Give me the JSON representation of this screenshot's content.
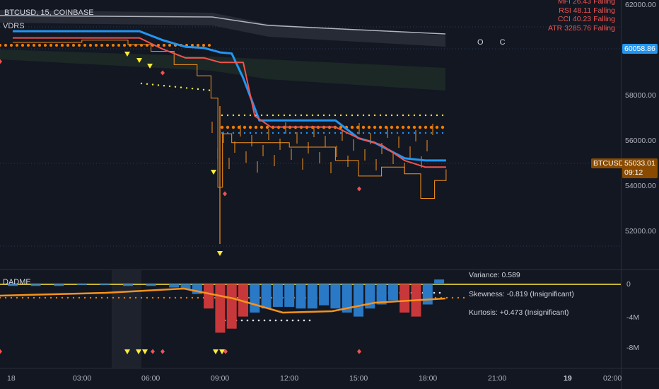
{
  "header": {
    "symbol_line": "BTCUSD, 15, COINBASE",
    "indicator_top": "VDRS",
    "indicator_bottom": "DADME",
    "oc_label": "O C"
  },
  "stats_panel": {
    "lines": [
      "MFI 26.43  Falling",
      "RSI 48.11  Falling",
      "CCI 40.23  Falling",
      "ATR 3285.76  Falling"
    ]
  },
  "price_axis": {
    "ticks": [
      "62000.00",
      "58000.00",
      "56000.00",
      "54000.00",
      "52000.00"
    ],
    "highlight": "60058.86",
    "current_symbol": "BTCUSD",
    "current_price": "55033.01",
    "countdown": "09:12"
  },
  "indicator_axis": {
    "ticks": [
      "0",
      "-4M",
      "-8M"
    ]
  },
  "time_axis": {
    "ticks": [
      "18",
      "03:00",
      "06:00",
      "09:00",
      "12:00",
      "15:00",
      "18:00",
      "21:00",
      "19",
      "02:00"
    ]
  },
  "statistics": {
    "variance": "Variance: 0.589",
    "skewness": "Skewness: -0.819 (Insignificant)",
    "kurtosis": "Kurtosis: +0.473 (Insignificant)"
  },
  "colors": {
    "background": "#131722",
    "blue_line": "#2196f3",
    "red_line": "#ef5350",
    "candles": "#f7931a",
    "dots_orange": "#f57c00",
    "dots_yellow": "#ffeb3b",
    "histogram_blue": "#2979c7",
    "histogram_red": "#c8383a",
    "trend_line": "#f7931a"
  },
  "chart_data": {
    "type": "line",
    "xlabel": "",
    "ylabel": "",
    "ylim": [
      50500,
      62400
    ],
    "x_ticks": [
      "18",
      "03:00",
      "06:00",
      "09:00",
      "12:00",
      "15:00",
      "18:00",
      "21:00",
      "19",
      "02:00"
    ],
    "series": [
      {
        "color": "#2196f3",
        "x_hours": [
          0,
          5.5,
          6.5,
          7.5,
          8.3,
          9.0,
          9.5,
          10.0,
          10.7,
          11.4,
          12.5,
          14.0,
          15.0,
          15.7,
          17.0,
          17.9,
          18.8
        ],
        "values": [
          61000,
          61000,
          60600,
          60300,
          60250,
          60050,
          60000,
          58900,
          57000,
          57000,
          57000,
          57000,
          56200,
          56000,
          55300,
          55200,
          55200
        ]
      },
      {
        "color": "#ef5350",
        "x_hours": [
          0,
          5.5,
          6.5,
          7.5,
          8.3,
          9.0,
          10.0,
          10.5,
          11.2,
          12.5,
          14.0,
          15.0,
          16.0,
          17.0,
          17.9,
          18.8
        ],
        "values": [
          60700,
          60700,
          60200,
          59800,
          59800,
          59600,
          59600,
          57200,
          56700,
          56700,
          56700,
          56200,
          55900,
          55200,
          54900,
          54900
        ]
      },
      {
        "color": "#f7931a",
        "x_hours": [
          0,
          3,
          5,
          6,
          7,
          8,
          8.6,
          8.9,
          9.1,
          9.5,
          10.5,
          12,
          13,
          14,
          15,
          16,
          17,
          17.7,
          18.3,
          18.8
        ],
        "values": [
          60500,
          60600,
          60400,
          60100,
          59500,
          59000,
          58000,
          54000,
          56400,
          56000,
          56000,
          55800,
          55800,
          55200,
          54500,
          54900,
          54600,
          53500,
          54300,
          54800
        ]
      }
    ],
    "indicator_histogram": {
      "x_hours": [
        0,
        1,
        2,
        3,
        4,
        5,
        6,
        7,
        7.5,
        8,
        8.5,
        9,
        9.5,
        10,
        10.5,
        11,
        11.5,
        12,
        12.5,
        13,
        13.5,
        14,
        14.5,
        15,
        15.5,
        16,
        16.5,
        17,
        17.5,
        18,
        18.5
      ],
      "values": [
        -0.2,
        -0.2,
        -0.2,
        -0.1,
        -0.1,
        -0.2,
        -0.2,
        -0.4,
        -0.6,
        -1.2,
        -3.0,
        -6.0,
        -5.5,
        -4.0,
        -3.5,
        -3.0,
        -2.8,
        -2.8,
        -3.0,
        -3.0,
        -2.6,
        -3.0,
        -3.5,
        -4.0,
        -3.0,
        -2.5,
        -2.0,
        -3.5,
        -4.0,
        -2.5,
        0.6
      ]
    }
  }
}
